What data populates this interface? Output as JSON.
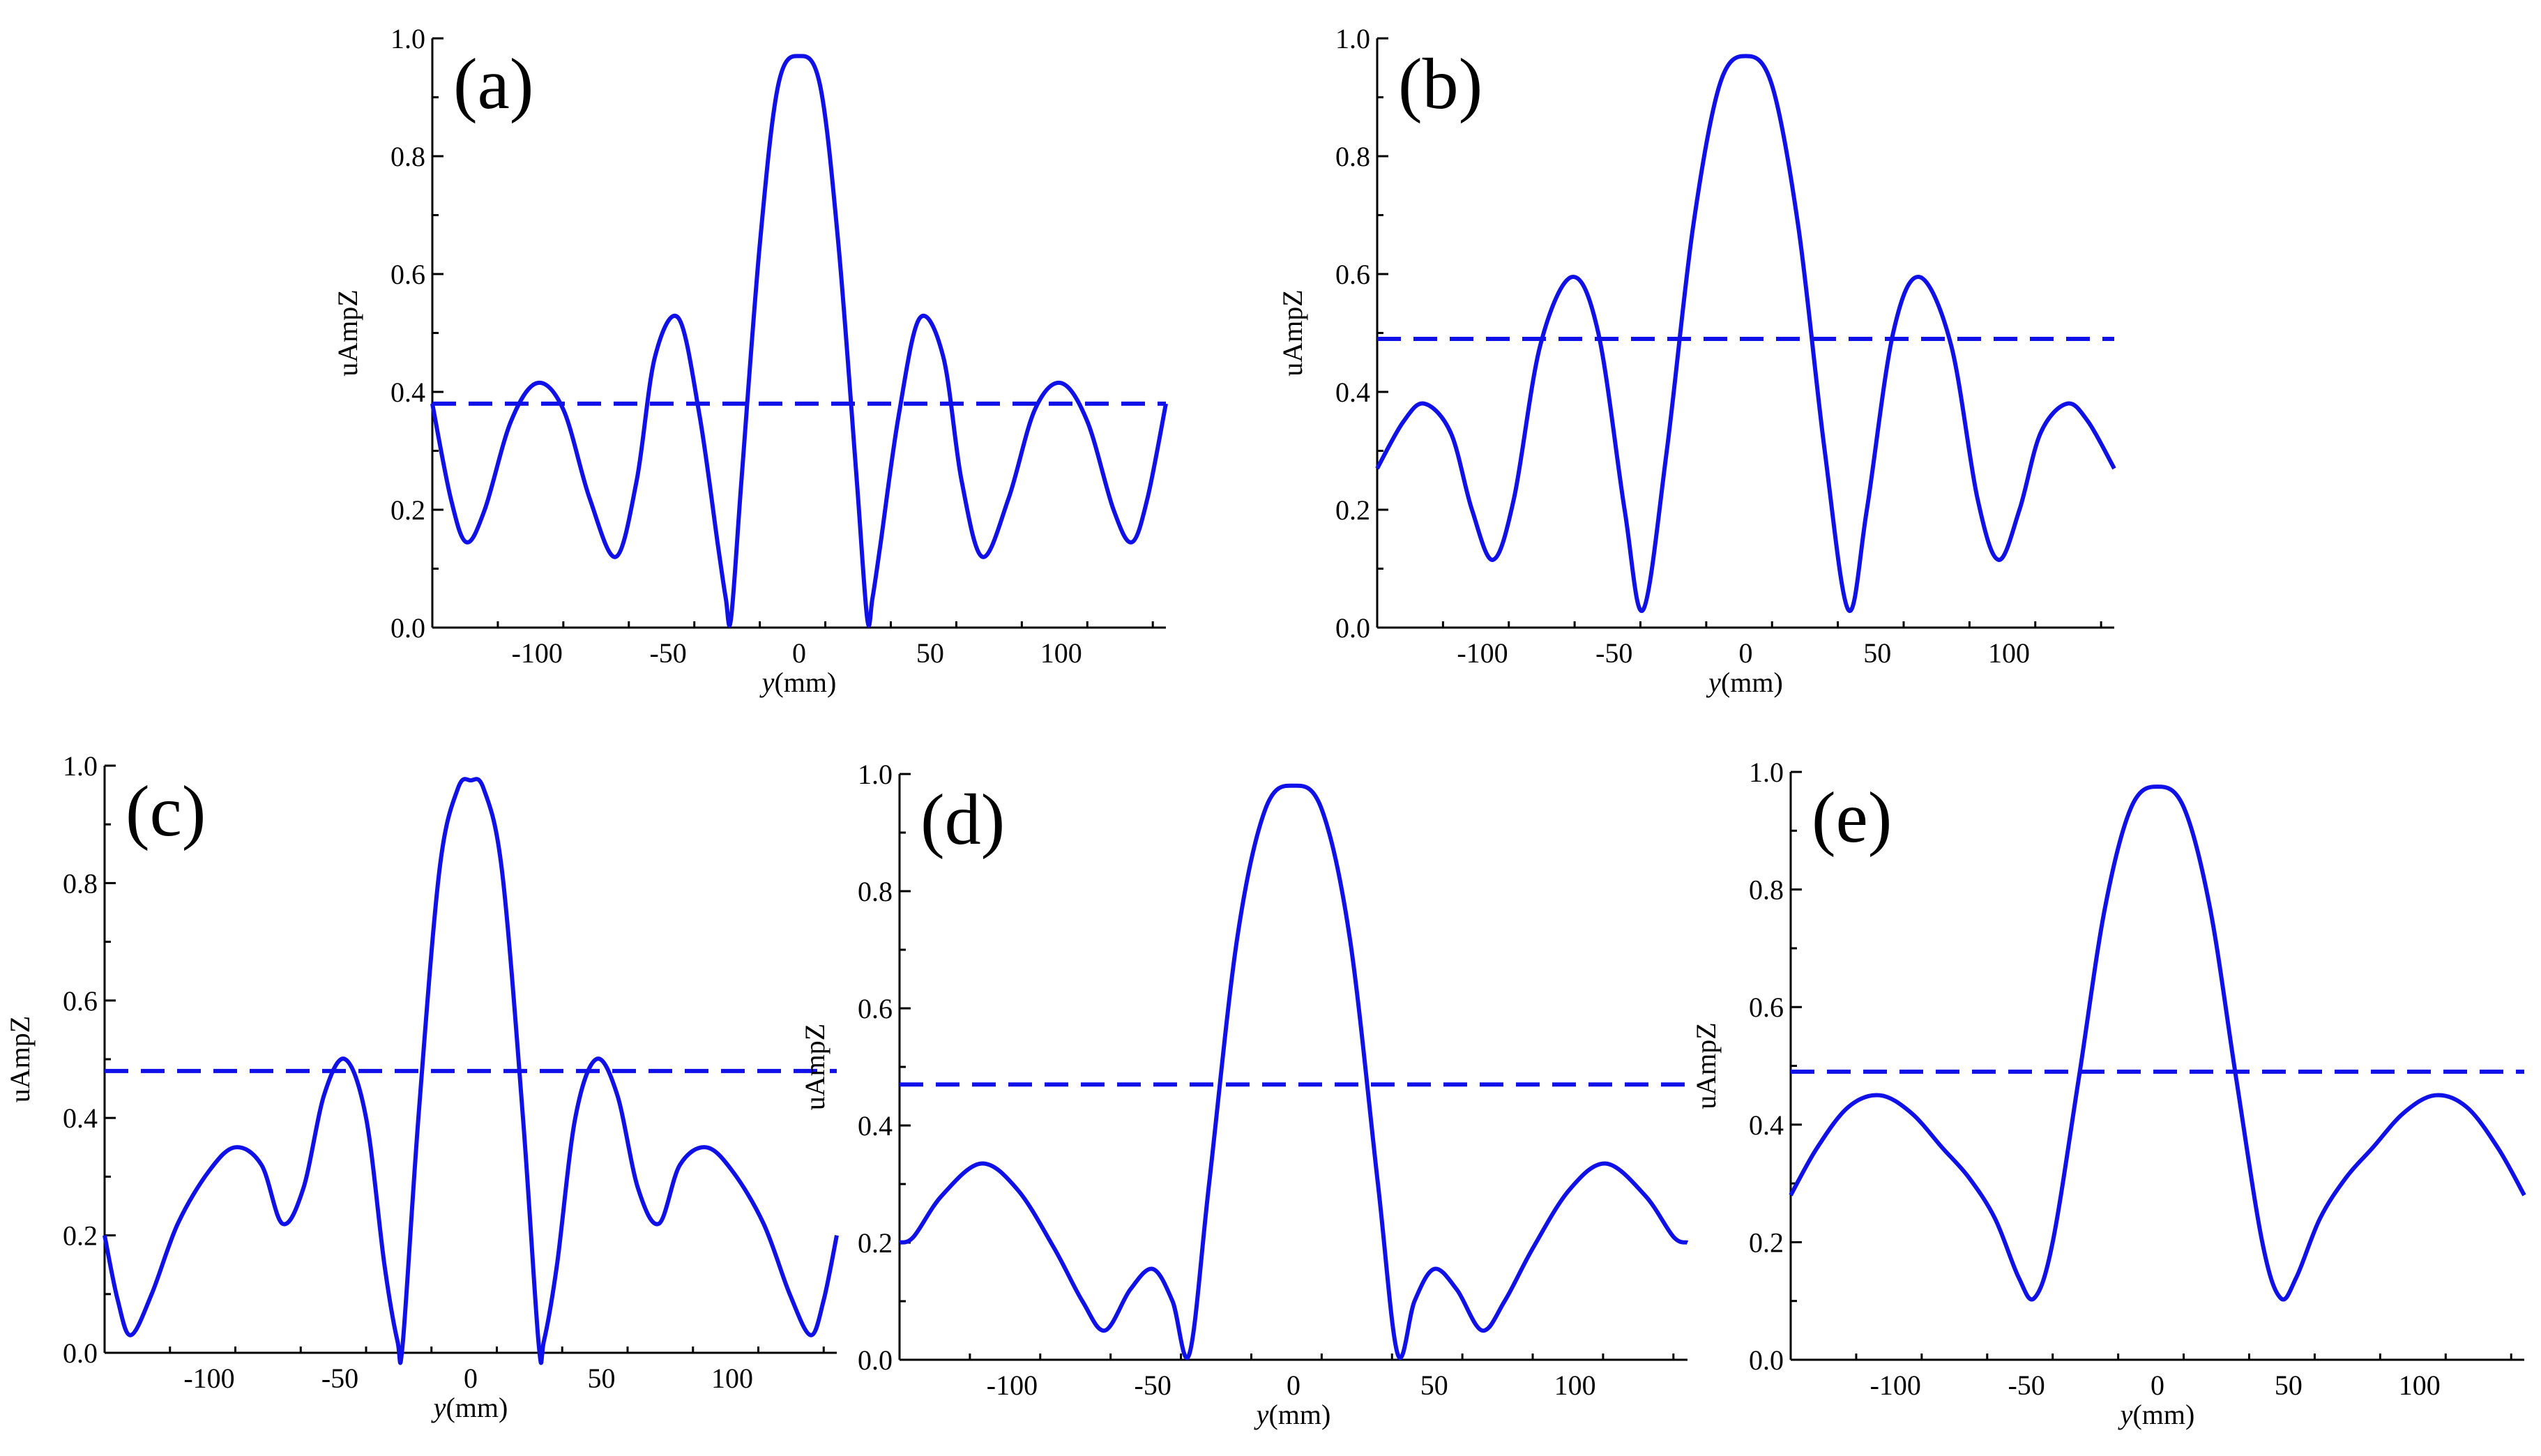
{
  "chart_data": [
    {
      "type": "line",
      "panel_label": "(a)",
      "xlabel_italic": "y",
      "xlabel_unit": "(mm)",
      "ylabel": "uAmpZ",
      "xlim": [
        -140,
        140
      ],
      "ylim": [
        0,
        1.0
      ],
      "x_ticks": [
        -100,
        -50,
        0,
        50,
        100
      ],
      "y_ticks": [
        "0.0",
        "0.2",
        "0.4",
        "0.6",
        "0.8",
        "1.0"
      ],
      "grid": false,
      "threshold": 0.38,
      "color": "#1010e8",
      "series": [
        {
          "x": [
            -140,
            -133,
            -127,
            -120,
            -110,
            -100,
            -90,
            -80,
            -70,
            -62,
            -55,
            -46,
            -38,
            -31,
            -28,
            -26,
            -22,
            -15,
            -8,
            0,
            8,
            15,
            22,
            26,
            28,
            31,
            38,
            46,
            55,
            62,
            70,
            80,
            90,
            100,
            110,
            120,
            127,
            133,
            140
          ],
          "y": [
            0.38,
            0.22,
            0.145,
            0.2,
            0.35,
            0.415,
            0.37,
            0.22,
            0.12,
            0.25,
            0.46,
            0.525,
            0.36,
            0.14,
            0.05,
            0.015,
            0.25,
            0.65,
            0.92,
            0.97,
            0.92,
            0.65,
            0.25,
            0.015,
            0.05,
            0.14,
            0.36,
            0.525,
            0.46,
            0.25,
            0.12,
            0.22,
            0.37,
            0.415,
            0.35,
            0.2,
            0.145,
            0.22,
            0.38
          ]
        }
      ]
    },
    {
      "type": "line",
      "panel_label": "(b)",
      "xlabel_italic": "y",
      "xlabel_unit": "(mm)",
      "ylabel": "uAmpZ",
      "xlim": [
        -140,
        140
      ],
      "ylim": [
        0,
        1.0
      ],
      "x_ticks": [
        -100,
        -50,
        0,
        50,
        100
      ],
      "y_ticks": [
        "0.0",
        "0.2",
        "0.4",
        "0.6",
        "0.8",
        "1.0"
      ],
      "grid": false,
      "threshold": 0.49,
      "color": "#1010e8",
      "series": [
        {
          "x": [
            -140,
            -130,
            -122,
            -112,
            -104,
            -96,
            -88,
            -78,
            -66,
            -56,
            -46,
            -39,
            -30,
            -20,
            -10,
            0,
            10,
            20,
            30,
            39,
            46,
            56,
            66,
            78,
            88,
            96,
            104,
            112,
            122,
            130,
            140
          ],
          "y": [
            0.27,
            0.35,
            0.38,
            0.33,
            0.2,
            0.115,
            0.22,
            0.48,
            0.595,
            0.5,
            0.2,
            0.03,
            0.3,
            0.68,
            0.92,
            0.97,
            0.92,
            0.68,
            0.3,
            0.03,
            0.2,
            0.5,
            0.595,
            0.48,
            0.22,
            0.115,
            0.2,
            0.33,
            0.38,
            0.35,
            0.27
          ]
        }
      ]
    },
    {
      "type": "line",
      "panel_label": "(c)",
      "xlabel_italic": "y",
      "xlabel_unit": "(mm)",
      "ylabel": "uAmpZ",
      "xlim": [
        -140,
        140
      ],
      "ylim": [
        0,
        1.0
      ],
      "x_ticks": [
        -100,
        -50,
        0,
        50,
        100
      ],
      "y_ticks": [
        "0.0",
        "0.2",
        "0.4",
        "0.6",
        "0.8",
        "1.0"
      ],
      "grid": false,
      "threshold": 0.48,
      "color": "#1010e8",
      "series": [
        {
          "x": [
            -140,
            -135,
            -130,
            -122,
            -112,
            -100,
            -90,
            -80,
            -72,
            -64,
            -56,
            -48,
            -40,
            -33,
            -28,
            -26,
            -20,
            -12,
            -5,
            0,
            5,
            12,
            20,
            26,
            28,
            33,
            40,
            48,
            56,
            64,
            72,
            80,
            90,
            100,
            112,
            122,
            130,
            135,
            140
          ],
          "y": [
            0.2,
            0.09,
            0.03,
            0.1,
            0.22,
            0.31,
            0.35,
            0.32,
            0.22,
            0.28,
            0.44,
            0.5,
            0.4,
            0.15,
            0.02,
            0.015,
            0.4,
            0.82,
            0.96,
            0.975,
            0.96,
            0.82,
            0.4,
            0.015,
            0.02,
            0.15,
            0.4,
            0.5,
            0.44,
            0.28,
            0.22,
            0.32,
            0.35,
            0.31,
            0.22,
            0.1,
            0.03,
            0.09,
            0.2
          ]
        }
      ]
    },
    {
      "type": "line",
      "panel_label": "(d)",
      "xlabel_italic": "y",
      "xlabel_unit": "(mm)",
      "ylabel": "uAmpZ",
      "xlim": [
        -140,
        140
      ],
      "ylim": [
        0,
        1.0
      ],
      "x_ticks": [
        -100,
        -50,
        0,
        50,
        100
      ],
      "y_ticks": [
        "0.0",
        "0.2",
        "0.4",
        "0.6",
        "0.8",
        "1.0"
      ],
      "grid": false,
      "threshold": 0.47,
      "color": "#1010e8",
      "series": [
        {
          "x": [
            -140,
            -135,
            -125,
            -111,
            -98,
            -85,
            -75,
            -67,
            -58,
            -50,
            -43,
            -37,
            -30,
            -20,
            -10,
            0,
            10,
            20,
            30,
            37,
            43,
            50,
            58,
            67,
            75,
            85,
            98,
            111,
            125,
            135,
            140
          ],
          "y": [
            0.2,
            0.21,
            0.28,
            0.335,
            0.29,
            0.19,
            0.1,
            0.05,
            0.12,
            0.155,
            0.1,
            0.01,
            0.3,
            0.72,
            0.94,
            0.98,
            0.94,
            0.72,
            0.3,
            0.01,
            0.1,
            0.155,
            0.12,
            0.05,
            0.1,
            0.19,
            0.29,
            0.335,
            0.28,
            0.21,
            0.2
          ]
        }
      ]
    },
    {
      "type": "line",
      "panel_label": "(e)",
      "xlabel_italic": "y",
      "xlabel_unit": "(mm)",
      "ylabel": "uAmpZ",
      "xlim": [
        -140,
        140
      ],
      "ylim": [
        0,
        1.0
      ],
      "x_ticks": [
        -100,
        -50,
        0,
        50,
        100
      ],
      "y_ticks": [
        "0.0",
        "0.2",
        "0.4",
        "0.6",
        "0.8",
        "1.0"
      ],
      "grid": false,
      "threshold": 0.49,
      "color": "#1010e8",
      "series": [
        {
          "x": [
            -140,
            -130,
            -118,
            -106,
            -94,
            -82,
            -72,
            -62,
            -53,
            -47,
            -40,
            -30,
            -20,
            -10,
            0,
            10,
            20,
            30,
            40,
            47,
            53,
            62,
            72,
            82,
            94,
            106,
            118,
            130,
            140
          ],
          "y": [
            0.28,
            0.36,
            0.43,
            0.45,
            0.42,
            0.36,
            0.31,
            0.24,
            0.14,
            0.105,
            0.2,
            0.48,
            0.77,
            0.94,
            0.975,
            0.94,
            0.77,
            0.48,
            0.2,
            0.105,
            0.14,
            0.24,
            0.31,
            0.36,
            0.42,
            0.45,
            0.43,
            0.36,
            0.28
          ]
        }
      ]
    }
  ]
}
